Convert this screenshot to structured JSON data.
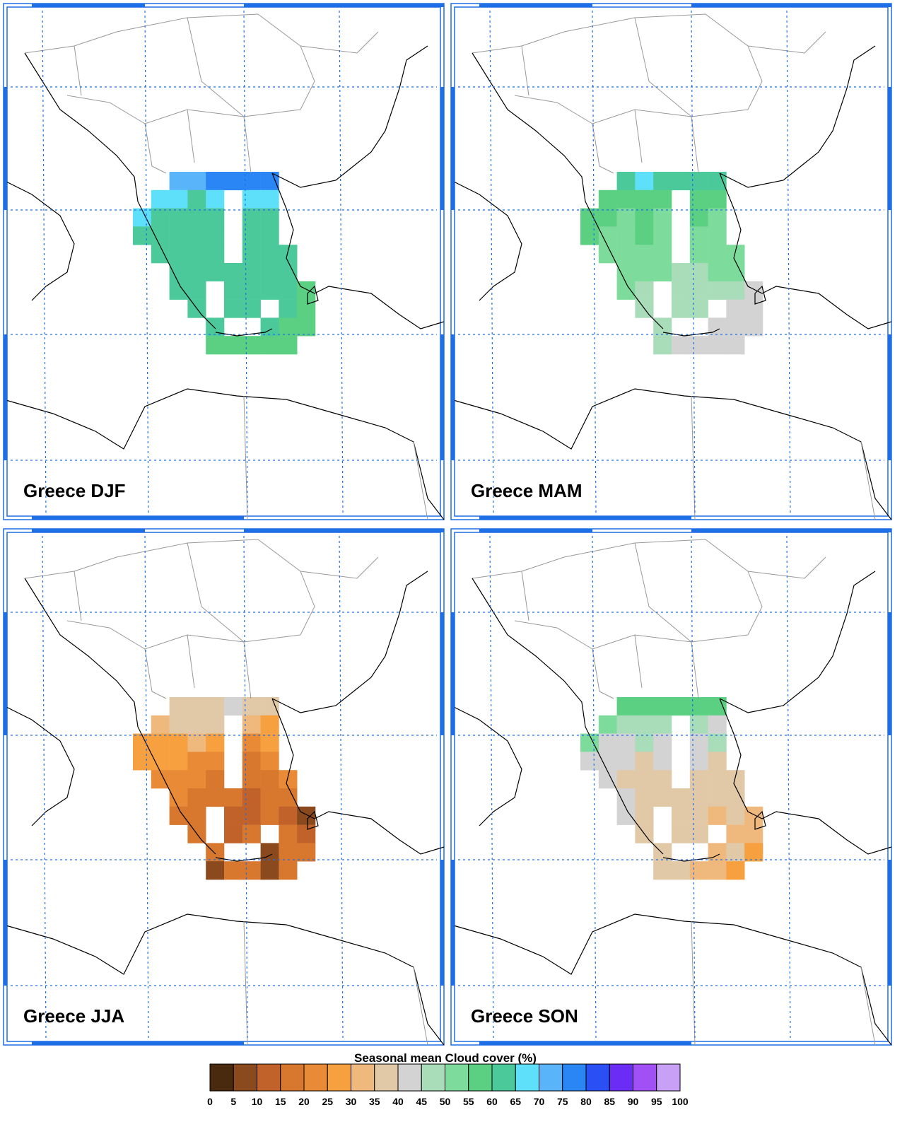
{
  "panels": [
    {
      "title": "Greece DJF",
      "values": [
        [
          null,
          null,
          70,
          70,
          75,
          75,
          75,
          75,
          null,
          null
        ],
        [
          null,
          65,
          65,
          60,
          65,
          null,
          65,
          65,
          null,
          null
        ],
        [
          65,
          60,
          60,
          60,
          60,
          null,
          60,
          60,
          null,
          null
        ],
        [
          60,
          60,
          60,
          60,
          60,
          null,
          60,
          60,
          null,
          null
        ],
        [
          null,
          60,
          60,
          60,
          60,
          null,
          60,
          60,
          60,
          null
        ],
        [
          null,
          null,
          60,
          60,
          60,
          60,
          60,
          60,
          60,
          null
        ],
        [
          null,
          null,
          60,
          60,
          null,
          60,
          60,
          60,
          60,
          55
        ],
        [
          null,
          null,
          null,
          60,
          null,
          60,
          60,
          null,
          60,
          55
        ],
        [
          null,
          null,
          null,
          null,
          60,
          null,
          null,
          60,
          55,
          55
        ],
        [
          null,
          null,
          null,
          null,
          55,
          55,
          55,
          55,
          55,
          null
        ]
      ]
    },
    {
      "title": "Greece MAM",
      "values": [
        [
          null,
          null,
          60,
          65,
          60,
          60,
          60,
          60,
          null,
          null
        ],
        [
          null,
          55,
          55,
          55,
          55,
          null,
          55,
          55,
          null,
          null
        ],
        [
          55,
          55,
          50,
          55,
          50,
          null,
          55,
          50,
          null,
          null
        ],
        [
          55,
          50,
          50,
          55,
          50,
          null,
          50,
          50,
          null,
          null
        ],
        [
          null,
          50,
          50,
          50,
          50,
          null,
          50,
          50,
          50,
          null
        ],
        [
          null,
          null,
          50,
          50,
          50,
          45,
          45,
          50,
          50,
          null
        ],
        [
          null,
          null,
          50,
          45,
          null,
          45,
          45,
          45,
          45,
          40
        ],
        [
          null,
          null,
          null,
          45,
          null,
          45,
          45,
          null,
          40,
          40
        ],
        [
          null,
          null,
          null,
          null,
          45,
          null,
          null,
          40,
          40,
          40
        ],
        [
          null,
          null,
          null,
          null,
          45,
          40,
          40,
          40,
          40,
          null
        ]
      ]
    },
    {
      "title": "Greece JJA",
      "values": [
        [
          null,
          null,
          35,
          35,
          35,
          40,
          35,
          35,
          null,
          null
        ],
        [
          null,
          30,
          35,
          35,
          35,
          null,
          30,
          25,
          null,
          null
        ],
        [
          25,
          25,
          25,
          30,
          25,
          null,
          20,
          25,
          null,
          null
        ],
        [
          25,
          25,
          25,
          20,
          20,
          null,
          15,
          20,
          null,
          null
        ],
        [
          null,
          20,
          20,
          20,
          15,
          null,
          15,
          15,
          20,
          null
        ],
        [
          null,
          null,
          20,
          15,
          15,
          15,
          10,
          15,
          15,
          null
        ],
        [
          null,
          null,
          15,
          15,
          null,
          10,
          10,
          15,
          10,
          5
        ],
        [
          null,
          null,
          null,
          15,
          null,
          10,
          15,
          null,
          15,
          10
        ],
        [
          null,
          null,
          null,
          null,
          15,
          null,
          null,
          5,
          15,
          15
        ],
        [
          null,
          null,
          null,
          null,
          5,
          15,
          15,
          5,
          15,
          null
        ]
      ]
    },
    {
      "title": "Greece SON",
      "values": [
        [
          null,
          null,
          55,
          55,
          55,
          55,
          55,
          55,
          null,
          null
        ],
        [
          null,
          50,
          45,
          45,
          45,
          null,
          45,
          40,
          null,
          null
        ],
        [
          50,
          40,
          40,
          45,
          40,
          null,
          40,
          45,
          null,
          null
        ],
        [
          40,
          40,
          40,
          35,
          40,
          null,
          40,
          35,
          null,
          null
        ],
        [
          null,
          40,
          35,
          35,
          35,
          null,
          35,
          35,
          35,
          null
        ],
        [
          null,
          null,
          40,
          35,
          35,
          35,
          35,
          35,
          35,
          null
        ],
        [
          null,
          null,
          40,
          35,
          null,
          35,
          35,
          30,
          35,
          30
        ],
        [
          null,
          null,
          null,
          35,
          null,
          35,
          35,
          null,
          30,
          30
        ],
        [
          null,
          null,
          null,
          null,
          35,
          null,
          null,
          30,
          35,
          25
        ],
        [
          null,
          null,
          null,
          null,
          35,
          35,
          30,
          30,
          25,
          null
        ]
      ]
    }
  ],
  "colorbar": {
    "title": "Seasonal mean Cloud cover (%)",
    "ticks": [
      0,
      5,
      10,
      15,
      20,
      25,
      30,
      35,
      40,
      45,
      50,
      55,
      60,
      65,
      70,
      75,
      80,
      85,
      90,
      95,
      100
    ],
    "colors": [
      "#4a2a0e",
      "#8b4a1e",
      "#c0622a",
      "#d8782f",
      "#e88a36",
      "#f7a040",
      "#efb87d",
      "#e1c9a7",
      "#d3d3d3",
      "#a9dcb9",
      "#7ddc9c",
      "#5bcf82",
      "#4bc99a",
      "#5fe0fa",
      "#5ab4fa",
      "#2a86f5",
      "#2a50f5",
      "#6b2df5",
      "#a050f5",
      "#c8a0f5"
    ]
  }
}
